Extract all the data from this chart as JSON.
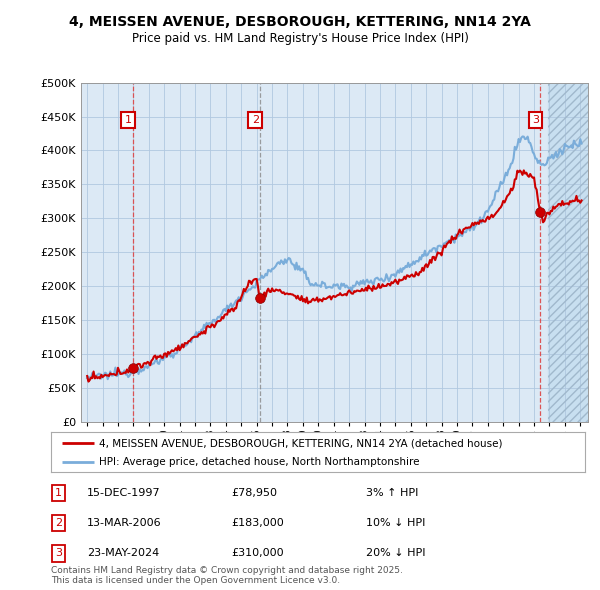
{
  "title": "4, MEISSEN AVENUE, DESBOROUGH, KETTERING, NN14 2YA",
  "subtitle": "Price paid vs. HM Land Registry's House Price Index (HPI)",
  "hpi_label": "HPI: Average price, detached house, North Northamptonshire",
  "price_label": "4, MEISSEN AVENUE, DESBOROUGH, KETTERING, NN14 2YA (detached house)",
  "footnote": "Contains HM Land Registry data © Crown copyright and database right 2025.\nThis data is licensed under the Open Government Licence v3.0.",
  "ylim": [
    0,
    500000
  ],
  "yticks": [
    0,
    50000,
    100000,
    150000,
    200000,
    250000,
    300000,
    350000,
    400000,
    450000,
    500000
  ],
  "sale_year_floats": [
    1997.96,
    2006.21,
    2024.39
  ],
  "sale_prices": [
    78950,
    183000,
    310000
  ],
  "sale_labels": [
    "1",
    "2",
    "3"
  ],
  "table_rows": [
    [
      "1",
      "15-DEC-1997",
      "£78,950",
      "3% ↑ HPI"
    ],
    [
      "2",
      "13-MAR-2006",
      "£183,000",
      "10% ↓ HPI"
    ],
    [
      "3",
      "23-MAY-2024",
      "£310,000",
      "20% ↓ HPI"
    ]
  ],
  "price_color": "#cc0000",
  "hpi_color": "#7aadda",
  "chart_bg": "#dce9f5",
  "forecast_bg": "#c8dff0",
  "grid_color": "#b0c8e0",
  "vline_red_color": "#dd4444",
  "vline_grey_color": "#888888",
  "annotation_box_color": "#cc0000",
  "background_color": "#ffffff"
}
